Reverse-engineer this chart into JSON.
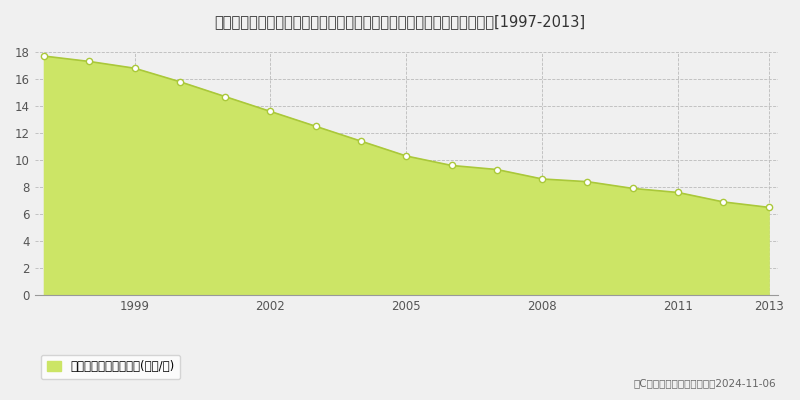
{
  "title": "長野県上水内郡信濃町大字柏原字役屋敷６０番１　公示地価　地価推移[1997-2013]",
  "years": [
    1997,
    1998,
    1999,
    2000,
    2001,
    2002,
    2003,
    2004,
    2005,
    2006,
    2007,
    2008,
    2009,
    2010,
    2011,
    2012,
    2013
  ],
  "values": [
    17.7,
    17.3,
    16.8,
    15.8,
    14.7,
    13.6,
    12.5,
    11.4,
    10.3,
    9.6,
    9.3,
    8.6,
    8.4,
    7.9,
    7.6,
    6.9,
    6.5
  ],
  "fill_color": "#cce566",
  "line_color": "#aac83a",
  "marker_facecolor": "#ffffff",
  "marker_edgecolor": "#aac83a",
  "bg_color": "#f0f0f0",
  "plot_bg_color": "#f0f0f0",
  "grid_color": "#bbbbbb",
  "ylim": [
    0,
    18
  ],
  "yticks": [
    0,
    2,
    4,
    6,
    8,
    10,
    12,
    14,
    16,
    18
  ],
  "xticks": [
    1999,
    2002,
    2005,
    2008,
    2011,
    2013
  ],
  "legend_label": "公示地価　平均坪単価(万円/坪)",
  "copyright_text": "（C）土地価格ドットコム　2024-11-06",
  "title_fontsize": 10.5,
  "tick_fontsize": 8.5,
  "legend_fontsize": 8.5,
  "copyright_fontsize": 7.5
}
